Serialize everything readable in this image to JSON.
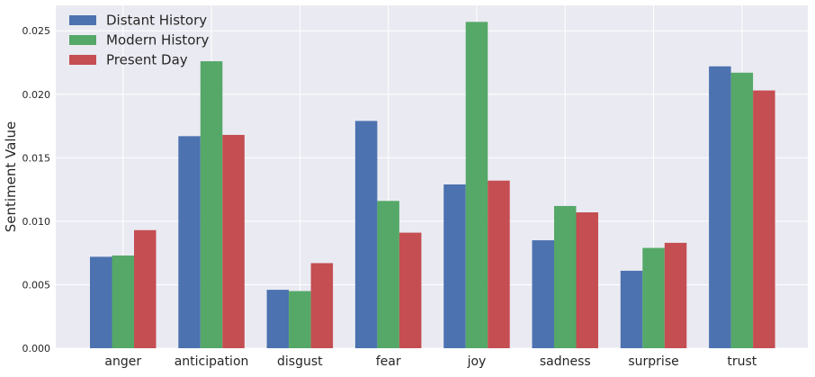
{
  "chart_data": {
    "type": "bar",
    "title": "",
    "xlabel": "",
    "ylabel": "Sentiment Value",
    "ylim": [
      0,
      0.027
    ],
    "yticks": [
      0.0,
      0.005,
      0.01,
      0.015,
      0.02,
      0.025
    ],
    "ytick_labels": [
      "0.000",
      "0.005",
      "0.010",
      "0.015",
      "0.020",
      "0.025"
    ],
    "grid": true,
    "legend_position": "top-left",
    "categories": [
      "anger",
      "anticipation",
      "disgust",
      "fear",
      "joy",
      "sadness",
      "surprise",
      "trust"
    ],
    "series": [
      {
        "name": "Distant History",
        "color": "#4c72b0",
        "values": [
          0.0072,
          0.0167,
          0.0046,
          0.0179,
          0.0129,
          0.0085,
          0.0061,
          0.0222
        ]
      },
      {
        "name": "Modern History",
        "color": "#55a868",
        "values": [
          0.0073,
          0.0226,
          0.0045,
          0.0116,
          0.0257,
          0.0112,
          0.0079,
          0.0217
        ]
      },
      {
        "name": "Present Day",
        "color": "#c44e52",
        "values": [
          0.0093,
          0.0168,
          0.0067,
          0.0091,
          0.0132,
          0.0107,
          0.0083,
          0.0203
        ]
      }
    ]
  },
  "style": {
    "plot_background": "#eaeaf2",
    "grid_color": "#ffffff",
    "text_color": "#262626"
  }
}
